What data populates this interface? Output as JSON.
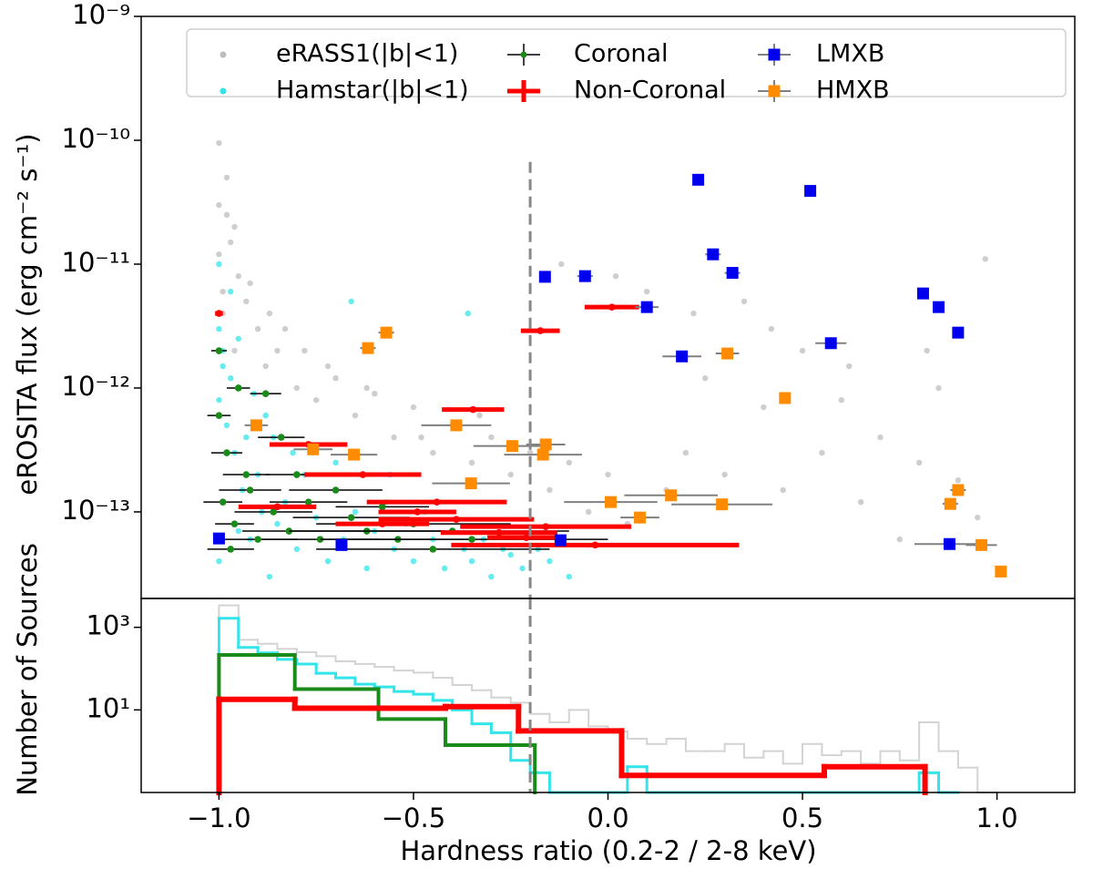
{
  "chart_data": [
    {
      "type": "scatter",
      "ylabel": "eROSITA flux (erg cm⁻² s⁻¹)",
      "xlim": [
        -1.2,
        1.2
      ],
      "ylim": [
        2e-14,
        1e-09
      ],
      "log_y": true,
      "yticks": [
        {
          "value": 1e-09,
          "label": "10⁻⁹"
        },
        {
          "value": 1e-10,
          "label": "10⁻¹⁰"
        },
        {
          "value": 1e-11,
          "label": "10⁻¹¹"
        },
        {
          "value": 1e-12,
          "label": "10⁻¹²"
        },
        {
          "value": 1e-13,
          "label": "10⁻¹³"
        }
      ],
      "vline": -0.2,
      "legend": "upper center",
      "series": [
        {
          "name": "eRASS1(|b|<1)",
          "color": "#bdbdbd",
          "marker": "o",
          "x": [
            -1.0,
            -1.0,
            -1.0,
            -0.99,
            -0.98,
            -0.99,
            -0.97,
            -0.95,
            -0.96,
            -0.93,
            -0.9,
            -0.88,
            -0.85,
            -0.8,
            -0.75,
            -0.7,
            -0.65,
            -0.6,
            -0.55,
            -0.5,
            -0.45,
            -0.4,
            -0.35,
            -0.3,
            -0.25,
            -0.2,
            -0.15,
            -0.1,
            -0.05,
            0.0,
            0.05,
            0.1,
            0.15,
            0.2,
            0.25,
            0.3,
            0.35,
            0.4,
            0.45,
            0.5,
            0.55,
            0.6,
            0.65,
            0.7,
            0.75,
            0.8,
            0.85,
            0.9,
            0.95,
            -0.98,
            -0.96,
            -0.92,
            -0.87,
            -0.83,
            -0.78,
            -0.72,
            -0.62,
            -0.48,
            -0.33,
            -0.12,
            0.02,
            0.22,
            0.42,
            0.62,
            0.82,
            0.97
          ],
          "values": [
            9.5e-11,
            3e-11,
            1.2e-11,
            6e-12,
            2.5e-11,
            4e-12,
            1.5e-11,
            8e-12,
            2e-12,
            5e-12,
            3e-12,
            1.5e-12,
            2e-12,
            1e-12,
            8e-13,
            1.2e-12,
            6e-13,
            9e-13,
            4e-13,
            7e-13,
            3e-13,
            5e-13,
            2.5e-13,
            4e-13,
            2e-13,
            3e-13,
            1.5e-13,
            2.5e-13,
            1e-13,
            2e-13,
            8e-14,
            6e-12,
            1.5e-13,
            3e-13,
            1.2e-12,
            2e-13,
            5e-12,
            7e-13,
            1.5e-13,
            2e-12,
            3e-13,
            8e-13,
            1.2e-13,
            4e-13,
            6e-14,
            2.5e-13,
            1e-12,
            1.8e-13,
            9e-14,
            5e-11,
            2e-11,
            7e-12,
            4e-12,
            3e-12,
            2e-12,
            1.5e-12,
            1e-12,
            4e-13,
            6e-13,
            1e-11,
            8e-12,
            4e-12,
            3e-12,
            1.5e-12,
            2e-12,
            1.1e-11
          ]
        },
        {
          "name": "Hamstar(|b|<1)",
          "color": "#33e5ea",
          "marker": "o",
          "x": [
            -1.0,
            -1.0,
            -1.0,
            -1.0,
            -0.99,
            -0.98,
            -0.97,
            -0.96,
            -0.95,
            -0.94,
            -0.93,
            -0.92,
            -0.9,
            -0.89,
            -0.87,
            -0.85,
            -0.83,
            -0.8,
            -0.78,
            -0.75,
            -0.72,
            -0.7,
            -0.68,
            -0.65,
            -0.62,
            -0.6,
            -0.57,
            -0.55,
            -0.52,
            -0.5,
            -0.47,
            -0.45,
            -0.42,
            -0.4,
            -0.37,
            -0.35,
            -0.32,
            -0.3,
            -0.27,
            -0.25,
            -0.22,
            -0.18,
            -0.15,
            -0.1,
            -0.97,
            -0.91,
            -0.86,
            -0.76,
            -0.66,
            -0.56,
            -0.99,
            -0.95,
            -0.88,
            -0.81,
            -0.7,
            -0.36
          ],
          "values": [
            1e-11,
            3e-12,
            8e-13,
            4e-14,
            2e-12,
            5e-13,
            1.2e-12,
            3e-13,
            7e-14,
            1.5e-13,
            4e-13,
            6e-14,
            2e-13,
            1e-13,
            3e-14,
            8e-14,
            1.2e-13,
            5e-14,
            2e-13,
            9e-14,
            4e-14,
            1.5e-13,
            6e-14,
            1e-13,
            3.5e-14,
            7e-14,
            1.2e-13,
            5e-14,
            8e-14,
            4e-14,
            1e-13,
            6e-14,
            3.5e-14,
            7e-14,
            5e-14,
            4e-14,
            6e-14,
            3e-14,
            5e-14,
            4.5e-14,
            3.5e-14,
            5e-14,
            4e-14,
            3e-14,
            6e-12,
            9e-13,
            4e-13,
            3e-13,
            5e-12,
            2e-13,
            1.5e-12,
            2.5e-12,
            6e-13,
            3e-13,
            2.5e-13,
            4e-12
          ]
        },
        {
          "name": "Coronal",
          "color": "#1a8a1a",
          "marker": "o",
          "ecolor": "#000000",
          "elinewidth": 1.5,
          "x": [
            -1.0,
            -1.0,
            -0.99,
            -0.98,
            -0.97,
            -0.96,
            -0.95,
            -0.93,
            -0.92,
            -0.9,
            -0.88,
            -0.86,
            -0.84,
            -0.82,
            -0.8,
            -0.77,
            -0.74,
            -0.7,
            -0.66,
            -0.62,
            -0.58,
            -0.54,
            -0.5,
            -0.45,
            -0.4,
            -0.35
          ],
          "values": [
            2e-12,
            6e-13,
            1.2e-13,
            3e-13,
            5e-14,
            8e-14,
            1e-12,
            2e-13,
            1.5e-13,
            6e-14,
            9e-13,
            1e-13,
            4e-13,
            7e-14,
            2e-13,
            1.2e-13,
            6e-14,
            1.5e-13,
            9e-14,
            7e-14,
            1.1e-13,
            6e-14,
            8e-14,
            5e-14,
            7e-14,
            6e-14
          ],
          "xerr": [
            0.02,
            0.03,
            0.05,
            0.04,
            0.06,
            0.05,
            0.03,
            0.06,
            0.08,
            0.1,
            0.04,
            0.1,
            0.06,
            0.12,
            0.08,
            0.1,
            0.15,
            0.12,
            0.15,
            0.2,
            0.12,
            0.2,
            0.25,
            0.3,
            0.3,
            0.35
          ]
        },
        {
          "name": "Non-Coronal",
          "color": "#ff0000",
          "marker": "o",
          "ecolor": "#ff0000",
          "elinewidth": 5,
          "x": [
            0.01,
            -0.174,
            -0.347,
            -0.77,
            -0.63,
            -0.44,
            -0.39,
            -0.16,
            -0.033,
            -0.28,
            -0.58,
            -0.49,
            -0.21,
            -1.0,
            -0.85
          ],
          "values": [
            4.5e-12,
            2.9e-12,
            6.7e-13,
            3.5e-13,
            2e-13,
            1.2e-13,
            8.7e-14,
            7.6e-14,
            5.4e-14,
            6.8e-14,
            8e-14,
            1e-13,
            6.2e-14,
            4e-12,
            1.1e-13
          ],
          "xerr": [
            0.07,
            0.05,
            0.08,
            0.1,
            0.15,
            0.18,
            0.2,
            0.22,
            0.37,
            0.15,
            0.12,
            0.1,
            0.1,
            0.01,
            0.1
          ]
        },
        {
          "name": "LMXB",
          "color": "#0000ee",
          "marker": "s",
          "ecolor": "#808080",
          "elinewidth": 2,
          "x": [
            0.232,
            0.52,
            0.27,
            0.32,
            -0.162,
            -0.059,
            0.1,
            0.19,
            0.573,
            0.81,
            0.85,
            0.9,
            -1.0,
            -0.685,
            -0.122,
            0.878
          ],
          "values": [
            4.8e-11,
            3.9e-11,
            1.2e-11,
            8.5e-12,
            7.9e-12,
            8e-12,
            4.5e-12,
            1.8e-12,
            2.3e-12,
            5.8e-12,
            4.5e-12,
            2.8e-12,
            6.1e-14,
            5.4e-14,
            5.9e-14,
            5.5e-14
          ],
          "xerr": [
            0.01,
            0.01,
            0.02,
            0.02,
            0.01,
            0.02,
            0.03,
            0.05,
            0.04,
            0.01,
            0.01,
            0.01,
            0.01,
            0.01,
            0.01,
            0.09
          ]
        },
        {
          "name": "HMXB",
          "color": "#ff8c00",
          "marker": "s",
          "ecolor": "#808080",
          "elinewidth": 2,
          "x": [
            -0.617,
            -0.57,
            0.307,
            0.455,
            -0.904,
            -0.39,
            -0.758,
            -0.653,
            -0.246,
            -0.167,
            -0.16,
            -0.352,
            0.007,
            0.162,
            0.293,
            0.082,
            0.9,
            0.88,
            0.96,
            1.01
          ],
          "values": [
            2.1e-12,
            2.8e-12,
            1.9e-12,
            8.3e-13,
            5e-13,
            5e-13,
            3.2e-13,
            2.9e-13,
            3.4e-13,
            2.9e-13,
            3.5e-13,
            1.7e-13,
            1.2e-13,
            1.36e-13,
            1.15e-13,
            9e-14,
            1.5e-13,
            1.16e-13,
            5.4e-14,
            3.3e-14
          ],
          "xerr": [
            0.02,
            0.02,
            0.03,
            0.01,
            0.03,
            0.09,
            0.05,
            0.06,
            0.1,
            0.1,
            0.05,
            0.1,
            0.12,
            0.12,
            0.13,
            0.05,
            0.02,
            0.02,
            0.04,
            0.01
          ]
        }
      ]
    },
    {
      "type": "histogram",
      "xlabel": "Hardness ratio (0.2-2 / 2-8 keV)",
      "ylabel": "Number of Sources",
      "xlim": [
        -1.2,
        1.2
      ],
      "ylim": [
        0.1,
        5000
      ],
      "log_y": true,
      "xticks": [
        {
          "value": -1.0,
          "label": "−1.0"
        },
        {
          "value": -0.5,
          "label": "−0.5"
        },
        {
          "value": 0.0,
          "label": "0.0"
        },
        {
          "value": 0.5,
          "label": "0.5"
        },
        {
          "value": 1.0,
          "label": "1.0"
        }
      ],
      "yticks": [
        {
          "value": 1000,
          "label": "10³"
        },
        {
          "value": 10,
          "label": "10¹"
        }
      ],
      "vline": -0.2,
      "series": [
        {
          "color": "#d3d3d3",
          "linewidth": 2,
          "bins": [
            -1.0,
            -0.95,
            -0.9,
            -0.85,
            -0.8,
            -0.75,
            -0.7,
            -0.65,
            -0.6,
            -0.55,
            -0.5,
            -0.45,
            -0.4,
            -0.35,
            -0.3,
            -0.25,
            -0.2,
            -0.15,
            -0.1,
            -0.05,
            0.0,
            0.05,
            0.1,
            0.15,
            0.2,
            0.25,
            0.3,
            0.35,
            0.4,
            0.45,
            0.5,
            0.55,
            0.6,
            0.65,
            0.7,
            0.75,
            0.8,
            0.85,
            0.9,
            0.95,
            1.0
          ],
          "values": [
            3400,
            500,
            400,
            300,
            250,
            200,
            150,
            130,
            110,
            90,
            80,
            60,
            40,
            30,
            20,
            15,
            8,
            5,
            10,
            4,
            3,
            2,
            1.5,
            2,
            1,
            1,
            1.5,
            0.7,
            1,
            0.5,
            1.5,
            0.8,
            1,
            0.5,
            1,
            0.6,
            5,
            1,
            0.4,
            0
          ]
        },
        {
          "color": "#33e5ea",
          "linewidth": 3,
          "bins": [
            -1.0,
            -0.95,
            -0.9,
            -0.85,
            -0.8,
            -0.75,
            -0.7,
            -0.65,
            -0.6,
            -0.55,
            -0.5,
            -0.45,
            -0.4,
            -0.35,
            -0.3,
            -0.25,
            -0.2,
            -0.15,
            -0.1,
            -0.05,
            0.0,
            0.05,
            0.1,
            0.15,
            0.2,
            0.25,
            0.3,
            0.35,
            0.4,
            0.45,
            0.5,
            0.55,
            0.6,
            0.65,
            0.7,
            0.75,
            0.8,
            0.85,
            0.9
          ],
          "values": [
            1660,
            325,
            240,
            167,
            129,
            77,
            60,
            42,
            36,
            28,
            24,
            17,
            10,
            4.6,
            2.8,
            0.6,
            0.3,
            0,
            0,
            0,
            0,
            0.42,
            0,
            0,
            0,
            0,
            0,
            0,
            0,
            0,
            0,
            0,
            0,
            0,
            0,
            0,
            0.3,
            0
          ]
        },
        {
          "color": "#1a8a1a",
          "linewidth": 4,
          "bins": [
            -1.0,
            -0.805,
            -0.59,
            -0.418,
            -0.188
          ],
          "values": [
            215,
            32,
            6,
            1.4
          ]
        },
        {
          "color": "#ff0000",
          "linewidth": 6,
          "bins": [
            -1.0,
            -0.805,
            -0.418,
            -0.23,
            0.035,
            0.556,
            0.815
          ],
          "values": [
            18,
            11,
            12,
            3.1,
            0.26,
            0.42
          ]
        }
      ]
    }
  ]
}
